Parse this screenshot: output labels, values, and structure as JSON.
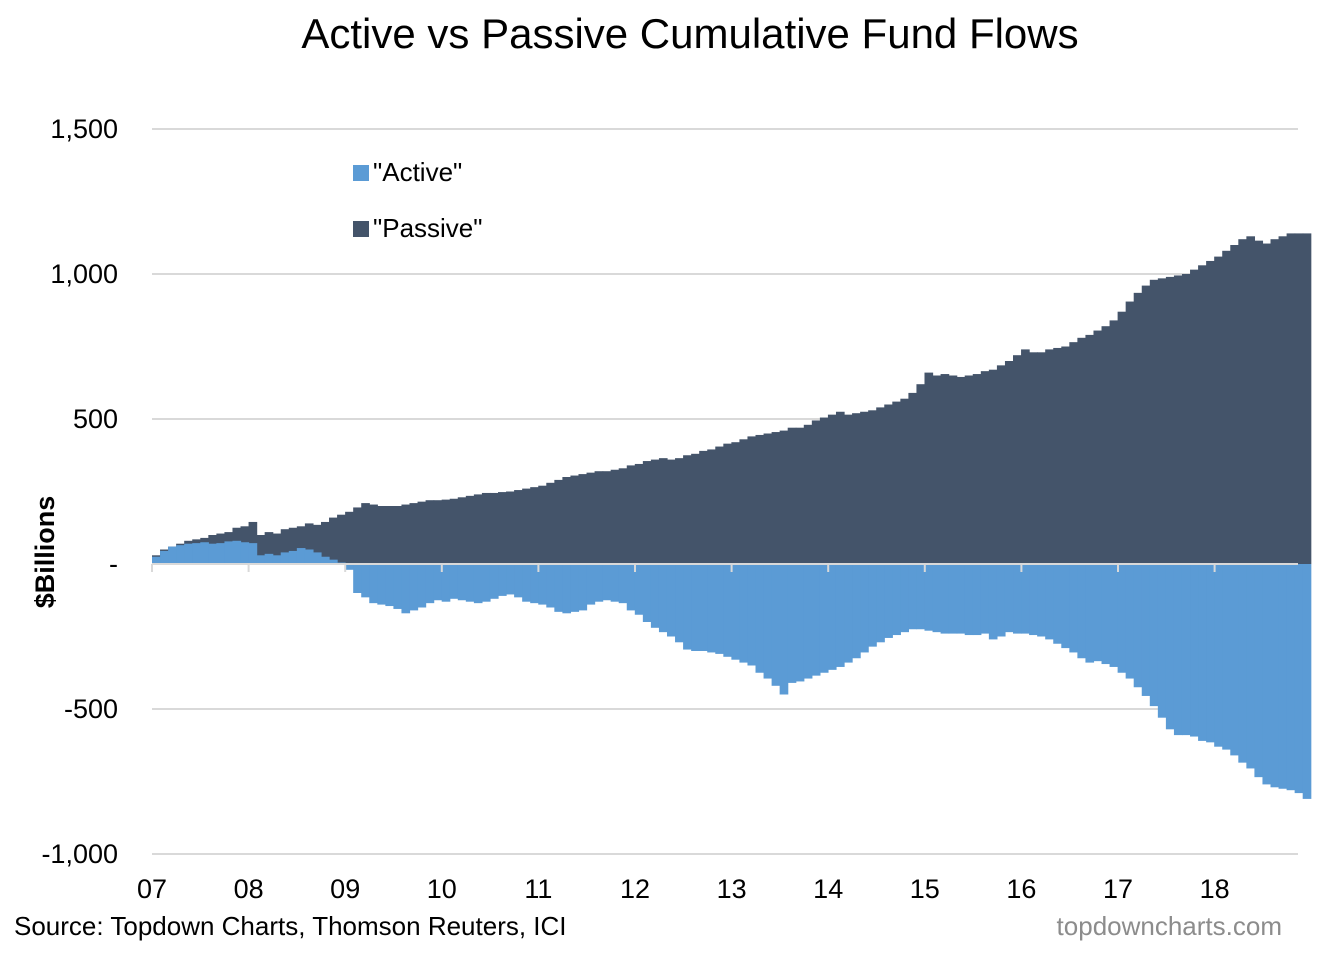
{
  "chart_data": {
    "type": "area",
    "title": "Active vs Passive Cumulative Fund Flows",
    "ylabel": "$Billions",
    "xlabel": "",
    "x_tick_labels": [
      "07",
      "08",
      "09",
      "10",
      "11",
      "12",
      "13",
      "14",
      "15",
      "16",
      "17",
      "18"
    ],
    "y_tick_labels": [
      "1,500",
      "1,000",
      "500",
      "-",
      "-500",
      "-1,000"
    ],
    "y_tick_values": [
      1500,
      1000,
      500,
      0,
      -500,
      -1000
    ],
    "ylim": [
      -1000,
      1500
    ],
    "x_start_year": 2007,
    "x_step_years": 0.0833,
    "grid": "horizontal",
    "legend_position": "upper-left",
    "series": [
      {
        "name": "\"Active\"",
        "color": "#5b9bd5",
        "values": [
          25,
          45,
          60,
          65,
          70,
          72,
          75,
          70,
          72,
          78,
          80,
          75,
          72,
          30,
          35,
          30,
          40,
          45,
          55,
          50,
          40,
          25,
          15,
          5,
          -20,
          -100,
          -115,
          -135,
          -140,
          -145,
          -155,
          -170,
          -160,
          -150,
          -135,
          -125,
          -130,
          -120,
          -125,
          -130,
          -135,
          -130,
          -120,
          -110,
          -105,
          -115,
          -130,
          -135,
          -140,
          -150,
          -165,
          -170,
          -165,
          -160,
          -140,
          -130,
          -125,
          -130,
          -135,
          -160,
          -175,
          -200,
          -220,
          -235,
          -250,
          -270,
          -295,
          -300,
          -300,
          -305,
          -310,
          -320,
          -330,
          -340,
          -350,
          -375,
          -395,
          -420,
          -450,
          -410,
          -405,
          -395,
          -385,
          -375,
          -365,
          -355,
          -340,
          -325,
          -305,
          -285,
          -270,
          -255,
          -245,
          -235,
          -225,
          -225,
          -230,
          -235,
          -240,
          -240,
          -240,
          -245,
          -245,
          -240,
          -260,
          -250,
          -235,
          -240,
          -240,
          -245,
          -250,
          -260,
          -275,
          -290,
          -305,
          -325,
          -340,
          -335,
          -345,
          -355,
          -375,
          -395,
          -425,
          -455,
          -490,
          -530,
          -570,
          -590,
          -590,
          -595,
          -610,
          -615,
          -630,
          -640,
          -660,
          -685,
          -705,
          -735,
          -760,
          -770,
          -775,
          -780,
          -790,
          -810
        ]
      },
      {
        "name": "\"Passive\"",
        "color": "#44546a",
        "values": [
          30,
          50,
          60,
          70,
          80,
          85,
          90,
          100,
          105,
          110,
          125,
          130,
          145,
          100,
          110,
          105,
          120,
          125,
          130,
          140,
          135,
          145,
          160,
          170,
          180,
          195,
          210,
          205,
          200,
          200,
          200,
          205,
          210,
          215,
          220,
          220,
          222,
          225,
          230,
          235,
          240,
          245,
          245,
          248,
          250,
          255,
          260,
          265,
          270,
          280,
          290,
          300,
          305,
          310,
          315,
          320,
          320,
          325,
          330,
          340,
          345,
          355,
          360,
          365,
          360,
          365,
          375,
          380,
          390,
          395,
          405,
          415,
          420,
          430,
          440,
          445,
          450,
          455,
          460,
          470,
          470,
          480,
          495,
          505,
          515,
          525,
          515,
          520,
          525,
          530,
          540,
          550,
          560,
          570,
          590,
          620,
          660,
          650,
          655,
          650,
          645,
          650,
          655,
          665,
          670,
          685,
          700,
          720,
          740,
          730,
          730,
          740,
          745,
          750,
          765,
          780,
          790,
          805,
          820,
          840,
          870,
          905,
          935,
          960,
          980,
          985,
          990,
          995,
          1000,
          1015,
          1030,
          1045,
          1060,
          1080,
          1100,
          1120,
          1130,
          1115,
          1105,
          1120,
          1130,
          1140,
          1140,
          1140
        ]
      }
    ]
  },
  "source_text": "Source: Topdown Charts, Thomson Reuters, ICI",
  "watermark_text": "topdowncharts.com"
}
